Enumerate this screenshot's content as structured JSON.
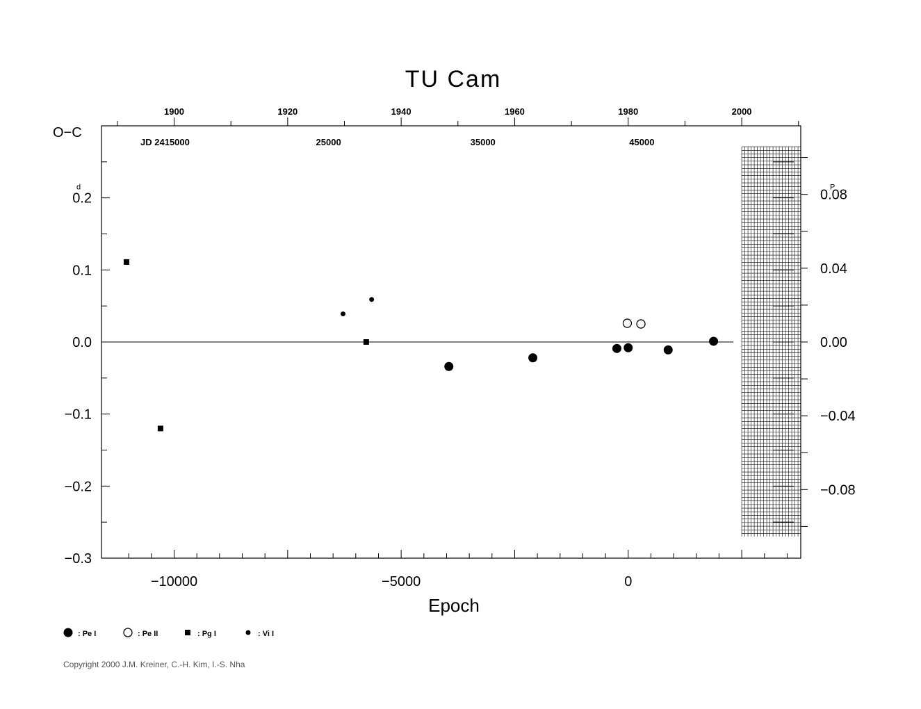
{
  "chart_data": {
    "type": "scatter",
    "title": "TU  Cam",
    "xlabel": "Epoch",
    "ylabel": "O−C",
    "xlim": [
      -11600,
      3800
    ],
    "ylim": [
      -0.3,
      0.3
    ],
    "x_ticks": [
      -10000,
      -5000,
      0
    ],
    "x_tick_labels": [
      "−10000",
      "−5000",
      "0"
    ],
    "y_ticks": [
      0.2,
      0.1,
      0.0,
      -0.1,
      -0.2,
      -0.3
    ],
    "y_tick_labels": [
      "0.2",
      "0.1",
      "0.0",
      "−0.1",
      "−0.2",
      "−0.3"
    ],
    "y_unit_label": "d",
    "top_year_ticks": [
      {
        "label": "1900",
        "epoch": -10000
      },
      {
        "label": "1920",
        "epoch": -7500
      },
      {
        "label": "1940",
        "epoch": -5000
      },
      {
        "label": "1960",
        "epoch": -2500
      },
      {
        "label": "1980",
        "epoch": 0
      },
      {
        "label": "2000",
        "epoch": 2500
      }
    ],
    "jd_labels": [
      {
        "label": "JD  2415000",
        "epoch": -10200
      },
      {
        "label": "25000",
        "epoch": -6600
      },
      {
        "label": "35000",
        "epoch": -3200
      },
      {
        "label": "45000",
        "epoch": 300
      }
    ],
    "right_axis": {
      "unit_label": "P",
      "ticks": [
        0.08,
        0.04,
        0.0,
        -0.04,
        -0.08
      ],
      "tick_labels": [
        "0.08",
        "0.04",
        "0.00",
        "−0.04",
        "−0.08"
      ],
      "y_factor": 2.56
    },
    "series": [
      {
        "name": "Pe I",
        "marker": "filled-circle",
        "points": [
          [
            -3950,
            -0.034
          ],
          [
            -2100,
            -0.022
          ],
          [
            -250,
            -0.009
          ],
          [
            0,
            -0.008
          ],
          [
            880,
            -0.011
          ],
          [
            1880,
            0.001
          ]
        ]
      },
      {
        "name": "Pe II",
        "marker": "open-circle",
        "points": [
          [
            -20,
            0.026
          ],
          [
            280,
            0.025
          ]
        ]
      },
      {
        "name": "Pg I",
        "marker": "square",
        "points": [
          [
            -11050,
            0.111
          ],
          [
            -10300,
            -0.12
          ],
          [
            -5770,
            0.0
          ]
        ]
      },
      {
        "name": "Vi I",
        "marker": "small-dot",
        "points": [
          [
            -6280,
            0.039
          ],
          [
            -5650,
            0.059
          ]
        ]
      }
    ],
    "legend": [
      {
        "symbol": "filled-circle",
        "label": ": Pe I"
      },
      {
        "symbol": "open-circle",
        "label": ": Pe II"
      },
      {
        "symbol": "square",
        "label": ": Pg I"
      },
      {
        "symbol": "small-dot",
        "label": ": Vi I"
      }
    ],
    "zero_line": true,
    "hatched_region_epoch": [
      2500,
      3800
    ]
  },
  "copyright": "Copyright 2000 J.M. Kreiner, C.-H. Kim, I.-S. Nha"
}
